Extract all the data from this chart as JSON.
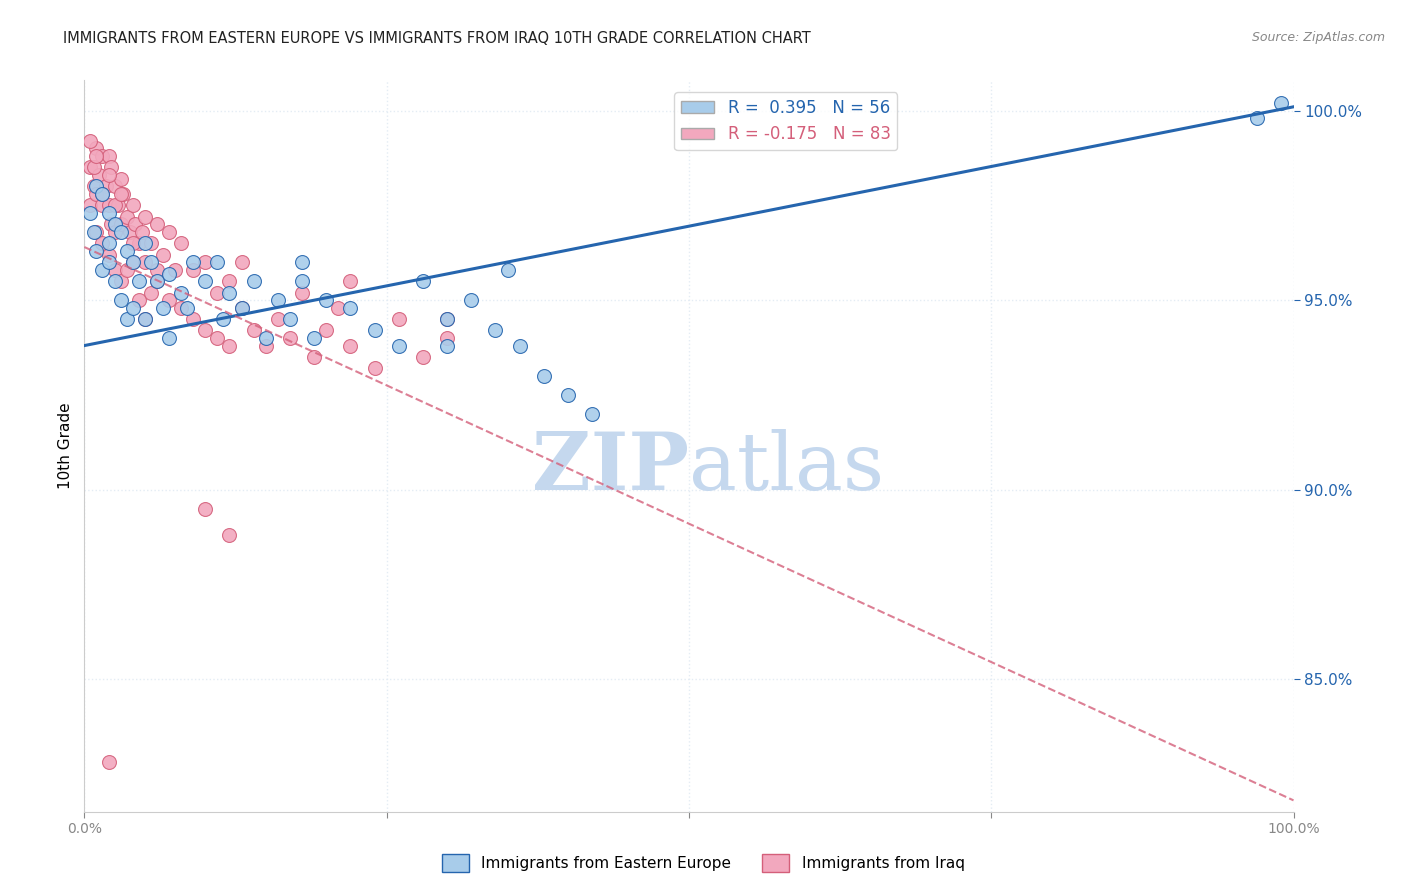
{
  "title": "IMMIGRANTS FROM EASTERN EUROPE VS IMMIGRANTS FROM IRAQ 10TH GRADE CORRELATION CHART",
  "source_text": "Source: ZipAtlas.com",
  "ylabel": "10th Grade",
  "xlim": [
    0.0,
    1.0
  ],
  "ylim": [
    0.815,
    1.008
  ],
  "ytick_values": [
    0.85,
    0.9,
    0.95,
    1.0
  ],
  "xtick_values": [
    0.0,
    0.25,
    0.5,
    0.75,
    1.0
  ],
  "r_blue": 0.395,
  "n_blue": 56,
  "r_pink": -0.175,
  "n_pink": 83,
  "blue_color": "#A8CCEA",
  "pink_color": "#F2A8BE",
  "blue_line_color": "#2565AE",
  "pink_line_color": "#D45F7A",
  "blue_line_start_y": 0.938,
  "blue_line_end_y": 1.001,
  "pink_line_start_y": 0.964,
  "pink_line_end_y": 0.818,
  "watermark_zip": "ZIP",
  "watermark_atlas": "atlas",
  "watermark_color": "#C5D8EE",
  "grid_color": "#E4ECF4",
  "background_color": "#FFFFFF",
  "title_fontsize": 10.5,
  "legend_fontsize": 12,
  "blue_scatter_x": [
    0.005,
    0.008,
    0.01,
    0.01,
    0.015,
    0.015,
    0.02,
    0.02,
    0.02,
    0.025,
    0.025,
    0.03,
    0.03,
    0.035,
    0.035,
    0.04,
    0.04,
    0.045,
    0.05,
    0.05,
    0.055,
    0.06,
    0.065,
    0.07,
    0.07,
    0.08,
    0.085,
    0.09,
    0.1,
    0.11,
    0.115,
    0.12,
    0.13,
    0.14,
    0.15,
    0.16,
    0.17,
    0.18,
    0.19,
    0.2,
    0.22,
    0.24,
    0.26,
    0.28,
    0.3,
    0.32,
    0.34,
    0.36,
    0.38,
    0.4,
    0.42,
    0.3,
    0.35,
    0.18,
    0.97,
    0.99
  ],
  "blue_scatter_y": [
    0.973,
    0.968,
    0.98,
    0.963,
    0.978,
    0.958,
    0.973,
    0.965,
    0.96,
    0.97,
    0.955,
    0.968,
    0.95,
    0.963,
    0.945,
    0.96,
    0.948,
    0.955,
    0.965,
    0.945,
    0.96,
    0.955,
    0.948,
    0.957,
    0.94,
    0.952,
    0.948,
    0.96,
    0.955,
    0.96,
    0.945,
    0.952,
    0.948,
    0.955,
    0.94,
    0.95,
    0.945,
    0.955,
    0.94,
    0.95,
    0.948,
    0.942,
    0.938,
    0.955,
    0.945,
    0.95,
    0.942,
    0.938,
    0.93,
    0.925,
    0.92,
    0.938,
    0.958,
    0.96,
    0.998,
    1.002
  ],
  "pink_scatter_x": [
    0.005,
    0.005,
    0.008,
    0.01,
    0.01,
    0.01,
    0.012,
    0.015,
    0.015,
    0.015,
    0.018,
    0.02,
    0.02,
    0.02,
    0.022,
    0.022,
    0.025,
    0.025,
    0.025,
    0.028,
    0.03,
    0.03,
    0.03,
    0.032,
    0.035,
    0.035,
    0.038,
    0.04,
    0.04,
    0.042,
    0.045,
    0.045,
    0.048,
    0.05,
    0.05,
    0.055,
    0.055,
    0.06,
    0.06,
    0.065,
    0.07,
    0.07,
    0.075,
    0.08,
    0.08,
    0.09,
    0.09,
    0.1,
    0.1,
    0.11,
    0.11,
    0.12,
    0.12,
    0.13,
    0.14,
    0.15,
    0.16,
    0.17,
    0.18,
    0.19,
    0.2,
    0.21,
    0.22,
    0.24,
    0.26,
    0.28,
    0.3,
    0.005,
    0.008,
    0.01,
    0.015,
    0.02,
    0.025,
    0.03,
    0.04,
    0.05,
    0.06,
    0.13,
    0.22,
    0.3,
    0.1,
    0.12,
    0.02
  ],
  "pink_scatter_y": [
    0.985,
    0.975,
    0.98,
    0.99,
    0.978,
    0.968,
    0.983,
    0.988,
    0.975,
    0.965,
    0.98,
    0.988,
    0.975,
    0.962,
    0.985,
    0.97,
    0.98,
    0.968,
    0.958,
    0.975,
    0.982,
    0.97,
    0.955,
    0.978,
    0.972,
    0.958,
    0.968,
    0.975,
    0.96,
    0.97,
    0.965,
    0.95,
    0.968,
    0.96,
    0.945,
    0.965,
    0.952,
    0.97,
    0.955,
    0.962,
    0.968,
    0.95,
    0.958,
    0.965,
    0.948,
    0.958,
    0.945,
    0.96,
    0.942,
    0.952,
    0.94,
    0.955,
    0.938,
    0.948,
    0.942,
    0.938,
    0.945,
    0.94,
    0.952,
    0.935,
    0.942,
    0.948,
    0.938,
    0.932,
    0.945,
    0.935,
    0.94,
    0.992,
    0.985,
    0.988,
    0.978,
    0.983,
    0.975,
    0.978,
    0.965,
    0.972,
    0.958,
    0.96,
    0.955,
    0.945,
    0.895,
    0.888,
    0.828
  ]
}
